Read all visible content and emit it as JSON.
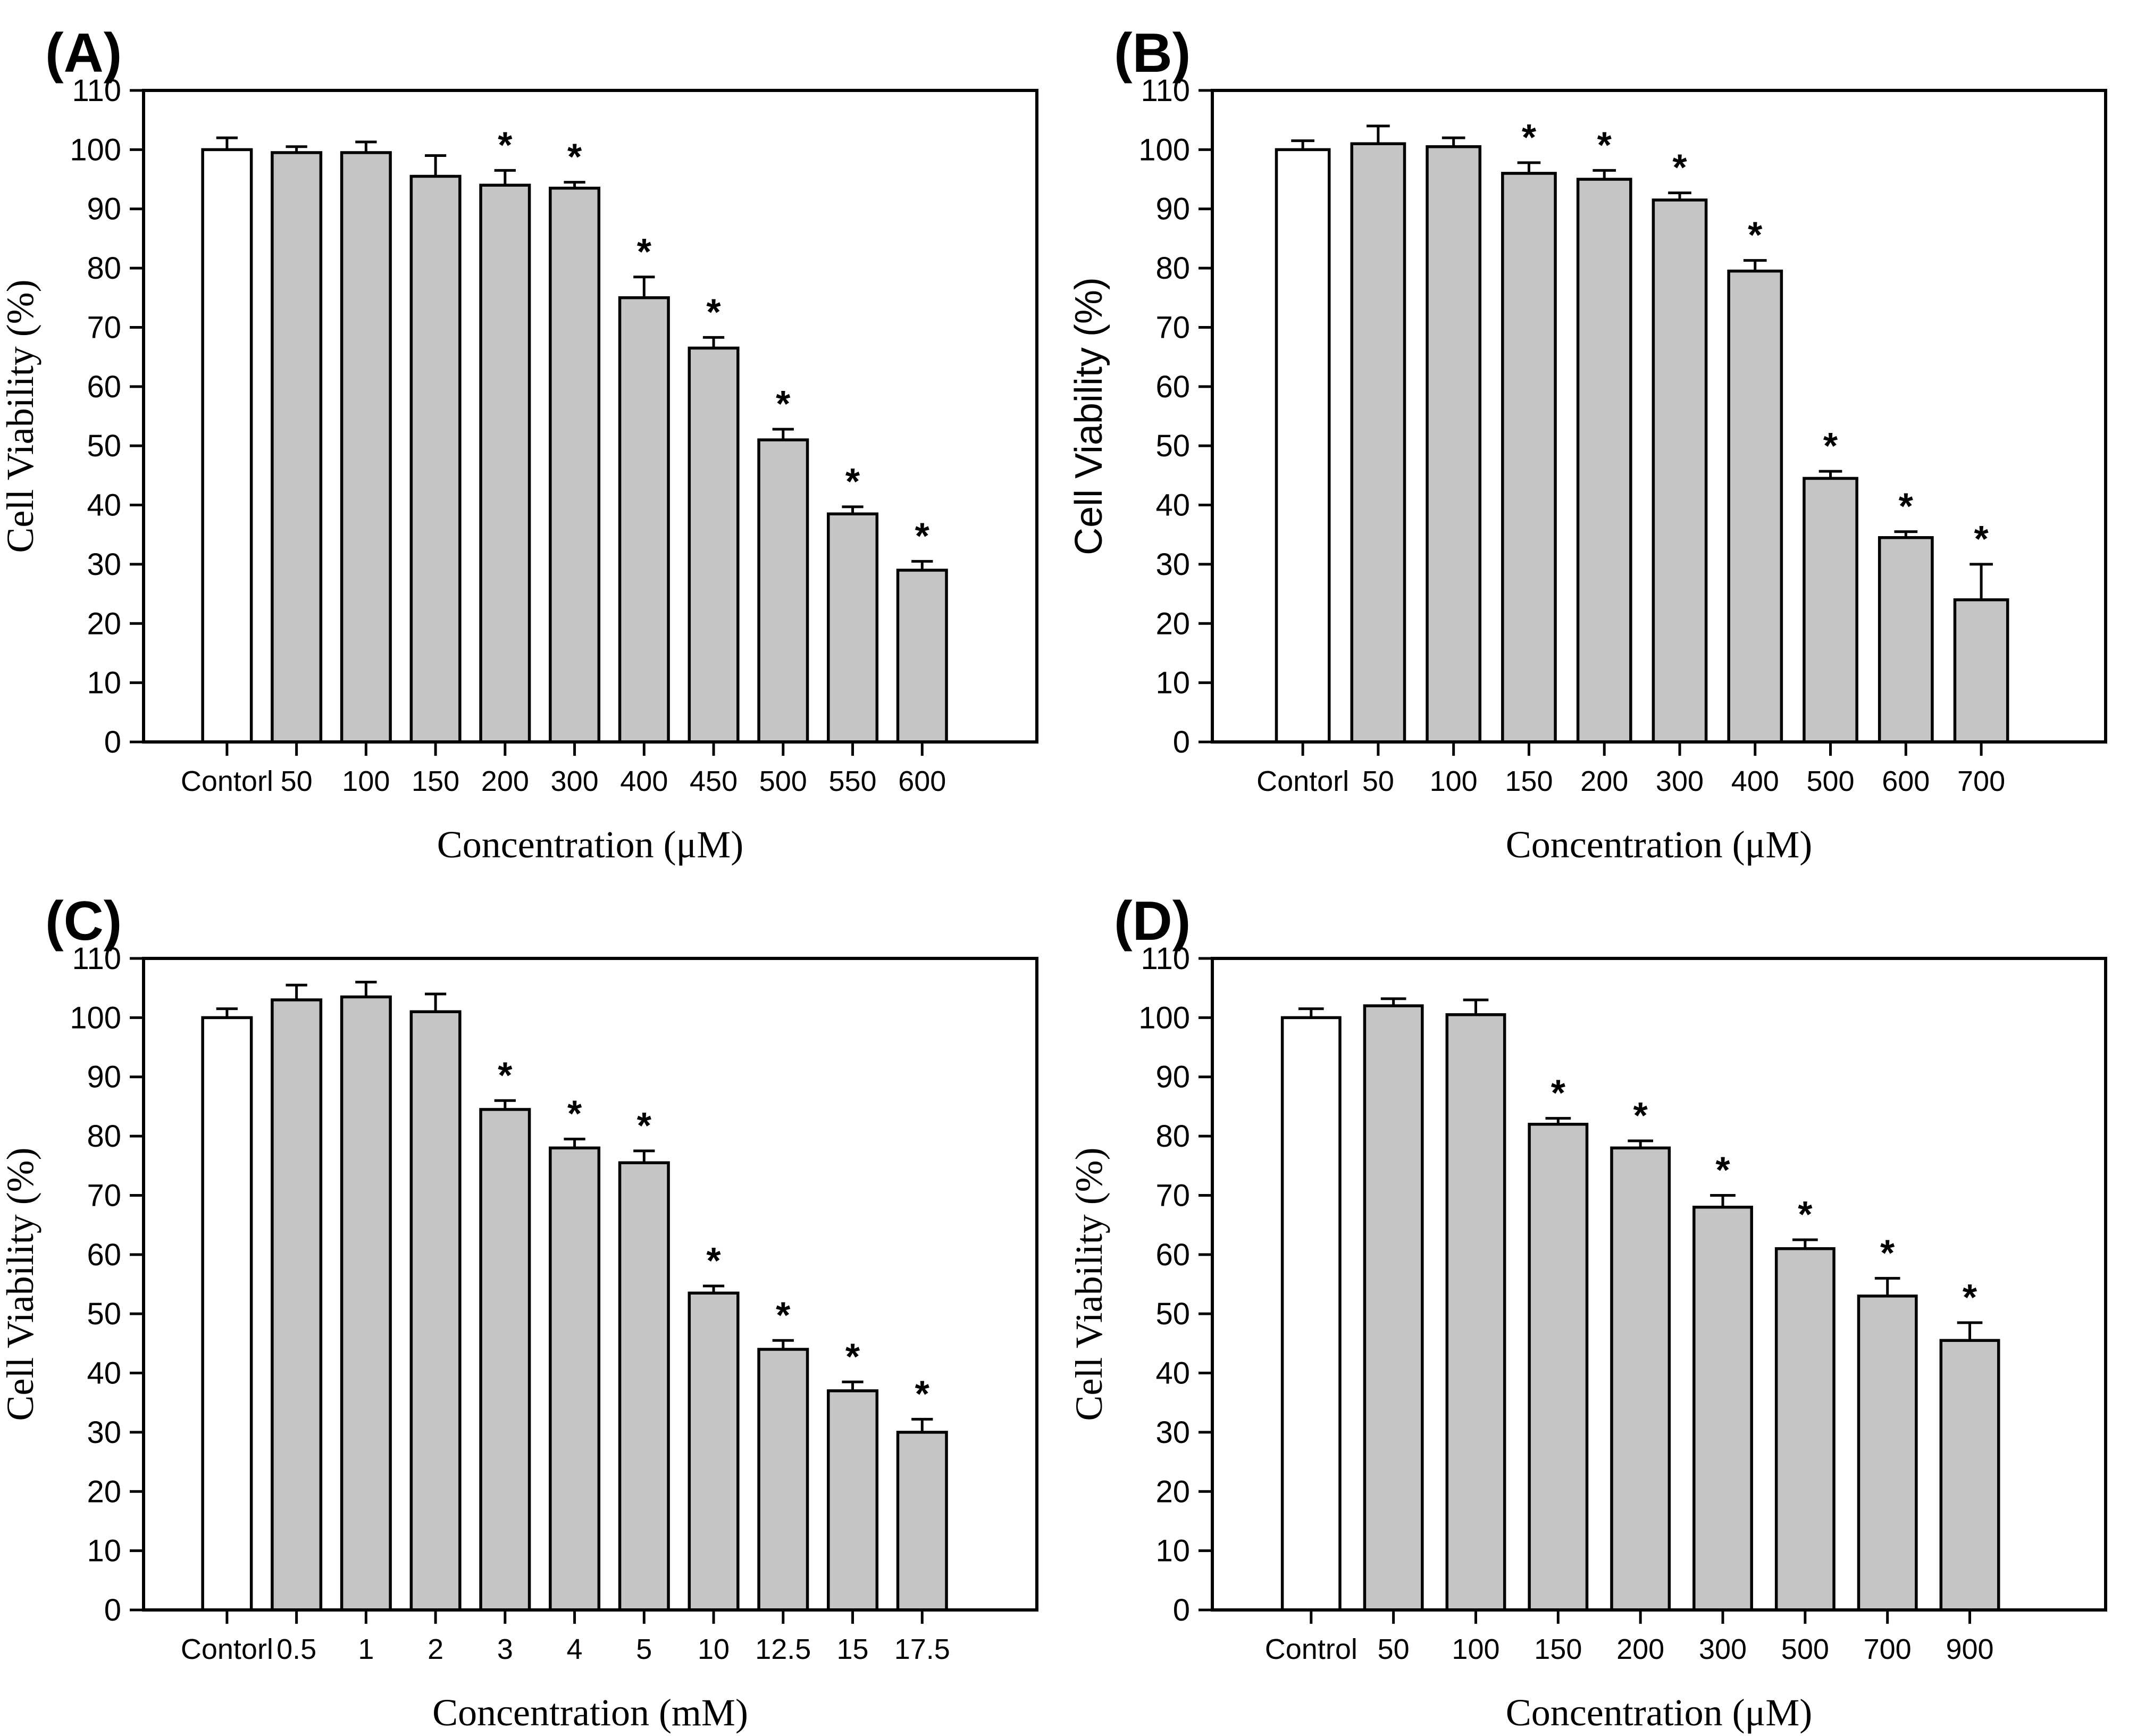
{
  "figure": {
    "background": "#ffffff",
    "significance_marker": "*",
    "colors": {
      "bar_fill": "#c5c5c5",
      "control_fill": "#ffffff",
      "stroke": "#000000",
      "text": "#000000"
    }
  },
  "chart_data": [
    {
      "type": "bar",
      "panel_label": "(A)",
      "xlabel": "Concentration (μM)",
      "ylabel": "Cell Viability (%)",
      "ylim": [
        0,
        110
      ],
      "ytick_step": 10,
      "grid": false,
      "legend": "none",
      "ylabel_style": "serif",
      "categories": [
        "Contorl",
        "50",
        "100",
        "150",
        "200",
        "300",
        "400",
        "450",
        "500",
        "550",
        "600"
      ],
      "values": [
        100,
        99.5,
        99.5,
        95.5,
        94,
        93.5,
        75,
        66.5,
        51,
        38.5,
        29
      ],
      "errors": [
        2,
        1,
        1.8,
        3.5,
        2.5,
        1,
        3.5,
        1.8,
        1.8,
        1.2,
        1.5
      ],
      "significant": [
        false,
        false,
        false,
        false,
        true,
        true,
        true,
        true,
        true,
        true,
        true
      ]
    },
    {
      "type": "bar",
      "panel_label": "(B)",
      "xlabel": "Concentration (μM)",
      "ylabel": "Cell Viability (%)",
      "ylim": [
        0,
        110
      ],
      "ytick_step": 10,
      "grid": false,
      "legend": "none",
      "ylabel_style": "sans",
      "categories": [
        "Contorl",
        "50",
        "100",
        "150",
        "200",
        "300",
        "400",
        "500",
        "600",
        "700"
      ],
      "values": [
        100,
        101,
        100.5,
        96,
        95,
        91.5,
        79.5,
        44.5,
        34.5,
        24
      ],
      "errors": [
        1.5,
        3,
        1.5,
        1.8,
        1.5,
        1.2,
        1.8,
        1.2,
        1,
        6
      ],
      "significant": [
        false,
        false,
        false,
        true,
        true,
        true,
        true,
        true,
        true,
        true
      ]
    },
    {
      "type": "bar",
      "panel_label": "(C)",
      "xlabel": "Concentration (mM)",
      "ylabel": "Cell Viability (%)",
      "ylim": [
        0,
        110
      ],
      "ytick_step": 10,
      "grid": false,
      "legend": "none",
      "ylabel_style": "serif",
      "categories": [
        "Contorl",
        "0.5",
        "1",
        "2",
        "3",
        "4",
        "5",
        "10",
        "12.5",
        "15",
        "17.5"
      ],
      "values": [
        100,
        103,
        103.5,
        101,
        84.5,
        78,
        75.5,
        53.5,
        44,
        37,
        30
      ],
      "errors": [
        1.5,
        2.5,
        2.5,
        3,
        1.5,
        1.5,
        2,
        1.2,
        1.5,
        1.5,
        2.2
      ],
      "significant": [
        false,
        false,
        false,
        false,
        true,
        true,
        true,
        true,
        true,
        true,
        true
      ]
    },
    {
      "type": "bar",
      "panel_label": "(D)",
      "xlabel": "Concentration (μM)",
      "ylabel": "Cell Viability (%)",
      "ylim": [
        0,
        110
      ],
      "ytick_step": 10,
      "grid": false,
      "legend": "none",
      "ylabel_style": "serif",
      "categories": [
        "Control",
        "50",
        "100",
        "150",
        "200",
        "300",
        "500",
        "700",
        "900"
      ],
      "values": [
        100,
        102,
        100.5,
        82,
        78,
        68,
        61,
        53,
        45.5
      ],
      "errors": [
        1.5,
        1.2,
        2.5,
        1,
        1.2,
        2,
        1.5,
        3,
        3
      ],
      "significant": [
        false,
        false,
        false,
        true,
        true,
        true,
        true,
        true,
        true
      ]
    }
  ]
}
